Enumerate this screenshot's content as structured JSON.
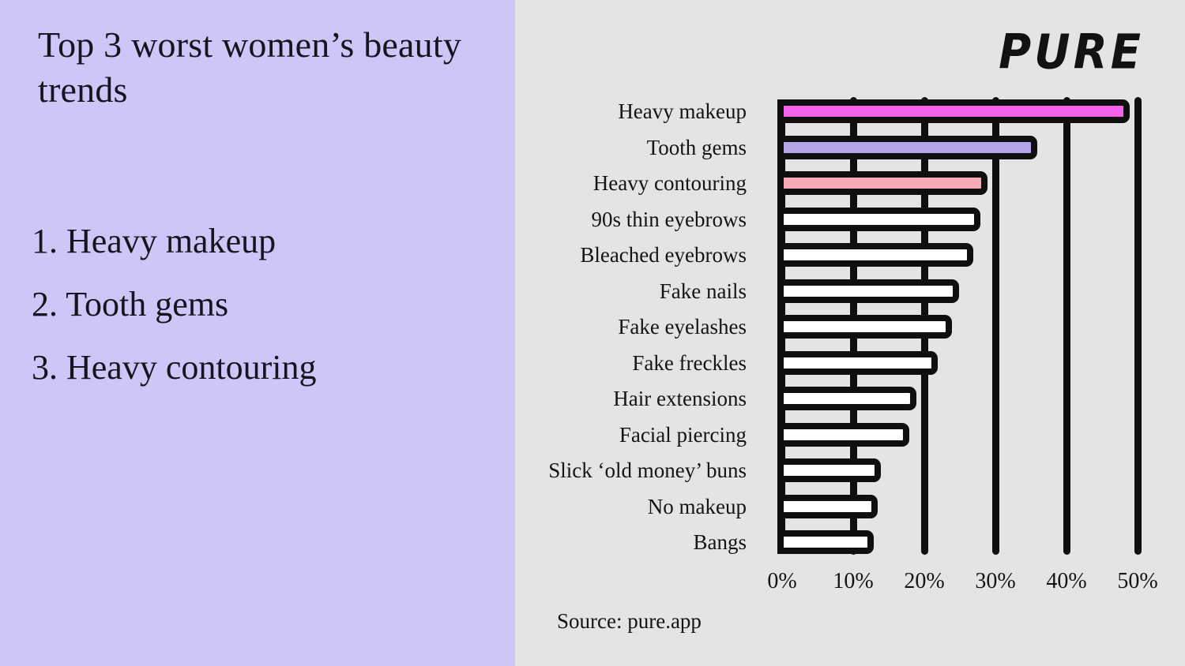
{
  "left_panel": {
    "title": "Top 3 worst women’s beauty trends",
    "items": [
      "1. Heavy makeup",
      "2. Tooth gems",
      "3. Heavy contouring"
    ],
    "background": "#cdc7f8",
    "text_color": "#18131f"
  },
  "right_panel": {
    "logo": "PURE",
    "source": "Source: pure.app",
    "background": "#e5e4e2"
  },
  "chart_data": {
    "type": "bar",
    "orientation": "horizontal",
    "title": "",
    "xlabel": "",
    "ylabel": "",
    "unit": "%",
    "xlim": [
      0,
      50
    ],
    "x_ticks": [
      "0%",
      "10%",
      "20%",
      "30%",
      "40%",
      "50%"
    ],
    "grid": true,
    "categories": [
      "Heavy makeup",
      "Tooth gems",
      "Heavy contouring",
      "90s thin eyebrows",
      "Bleached eyebrows",
      "Fake nails",
      "Fake eyelashes",
      "Fake freckles",
      "Hair extensions",
      "Facial piercing",
      "Slick ‘old money’ buns",
      "No makeup",
      "Bangs"
    ],
    "values": [
      48,
      35,
      28,
      27,
      26,
      24,
      23,
      21,
      18,
      17,
      13,
      12.5,
      12
    ],
    "bar_colors": [
      "#f263ea",
      "#b3a5e8",
      "#f9a9b6",
      "#ffffff",
      "#ffffff",
      "#ffffff",
      "#ffffff",
      "#ffffff",
      "#ffffff",
      "#ffffff",
      "#ffffff",
      "#ffffff",
      "#ffffff"
    ],
    "outline_color": "#0f0f0f"
  }
}
